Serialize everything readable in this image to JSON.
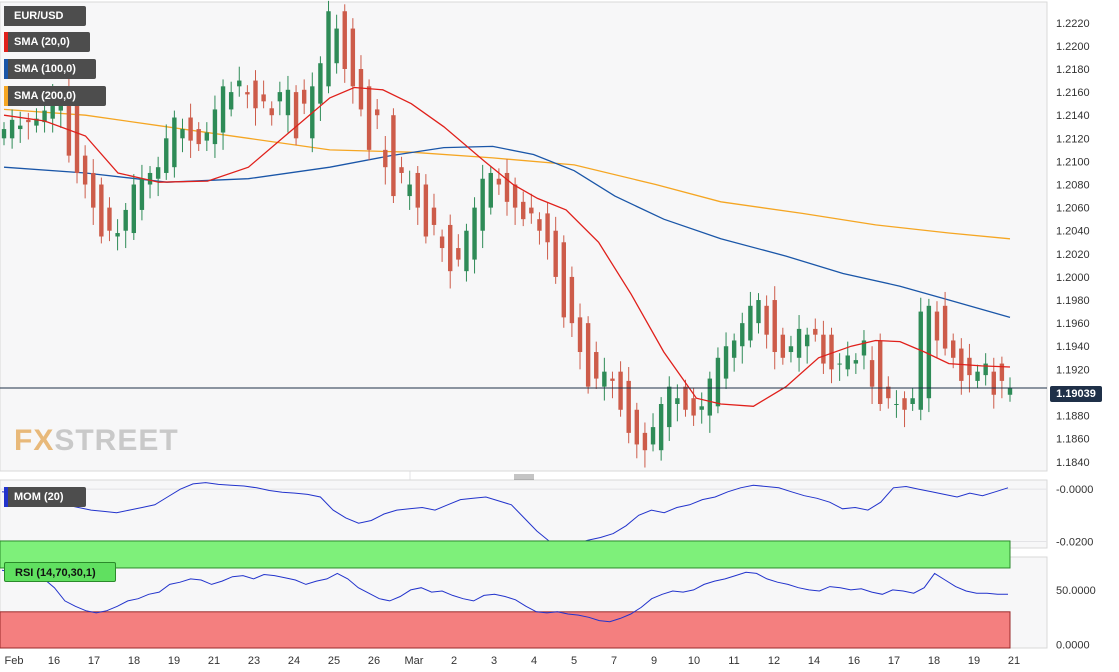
{
  "legends": {
    "main": [
      {
        "label": "EUR/USD",
        "color": "#4d4d4d"
      },
      {
        "label": "SMA (20,0)",
        "color": "#e0201b"
      },
      {
        "label": "SMA (100,0)",
        "color": "#1a56a8"
      },
      {
        "label": "SMA (200,0)",
        "color": "#f5a623"
      }
    ],
    "mom": "MOM (20)",
    "rsi": "RSI (14,70,30,1)"
  },
  "watermark": {
    "fx": "FX",
    "street": "STREET"
  },
  "current_price": "1.19039",
  "colors": {
    "bull": "#2e8b57",
    "bear": "#cd5c4a",
    "sma20": "#e0201b",
    "sma100": "#1a56a8",
    "sma200": "#f5a623",
    "mom": "#2233cc",
    "rsi": "#2233cc"
  },
  "chart_data": [
    {
      "type": "candlestick",
      "title": "EUR/USD",
      "x_labels": [
        "Feb",
        "16",
        "17",
        "18",
        "19",
        "21",
        "23",
        "24",
        "25",
        "26",
        "Mar",
        "2",
        "3",
        "4",
        "5",
        "7",
        "9",
        "10",
        "11",
        "12",
        "14",
        "16",
        "17",
        "18",
        "19",
        "21"
      ],
      "y_ticks": [
        "1.2220",
        "1.2200",
        "1.2180",
        "1.2160",
        "1.2140",
        "1.2120",
        "1.2100",
        "1.2080",
        "1.2060",
        "1.2040",
        "1.2020",
        "1.2000",
        "1.1980",
        "1.1960",
        "1.1940",
        "1.1920",
        "1.1900",
        "1.1880",
        "1.1860",
        "1.1840"
      ],
      "ylim": [
        1.1832,
        1.2238
      ],
      "current_price": 1.19039,
      "ohlc_close": [
        1.2128,
        1.2136,
        1.2131,
        1.2134,
        1.2137,
        1.2144,
        1.2161,
        1.215,
        1.2105,
        1.209,
        1.208,
        1.206,
        1.2035,
        1.204,
        1.2038,
        1.2058,
        1.208,
        1.2085,
        1.209,
        1.2095,
        1.212,
        1.2138,
        1.2128,
        1.2118,
        1.2115,
        1.2125,
        1.2145,
        1.2165,
        1.216,
        1.217,
        1.2158,
        1.2146,
        1.2152,
        1.214,
        1.216,
        1.2162,
        1.212,
        1.215,
        1.2165,
        1.2185,
        1.223,
        1.2215,
        1.218,
        1.2165,
        1.2145,
        1.211,
        1.214,
        1.2095,
        1.207,
        1.209,
        1.208,
        1.206,
        1.2035,
        1.2045,
        1.2025,
        1.2005,
        1.2015,
        1.204,
        1.206,
        1.2085,
        1.209,
        1.208,
        1.2065,
        1.206,
        1.205,
        1.2055,
        1.204,
        1.203,
        1.2,
        1.1965,
        1.196,
        1.1935,
        1.1905,
        1.1912,
        1.1918,
        1.191,
        1.1885,
        1.1865,
        1.1855,
        1.185,
        1.187,
        1.189,
        1.1905,
        1.1895,
        1.1885,
        1.188,
        1.1888,
        1.1912,
        1.193,
        1.194,
        1.1945,
        1.196,
        1.1975,
        1.198,
        1.195,
        1.1935,
        1.193,
        1.194,
        1.1955,
        1.195,
        1.195,
        1.1925,
        1.192,
        1.1925,
        1.1932,
        1.1928,
        1.1945,
        1.1905,
        1.189,
        1.1895,
        1.189,
        1.1885,
        1.1895,
        1.197,
        1.1975,
        1.1945,
        1.1938,
        1.193,
        1.191,
        1.1915,
        1.1918,
        1.1925,
        1.1898,
        1.191,
        1.1904
      ],
      "ohlc_open": [
        1.212,
        1.2128,
        1.2136,
        1.2131,
        1.2134,
        1.2137,
        1.2144,
        1.2161,
        1.215,
        1.2105,
        1.209,
        1.208,
        1.206,
        1.2035,
        1.204,
        1.2038,
        1.2058,
        1.208,
        1.2085,
        1.209,
        1.2095,
        1.212,
        1.2138,
        1.2128,
        1.2118,
        1.2115,
        1.2125,
        1.2145,
        1.2165,
        1.216,
        1.217,
        1.2158,
        1.2146,
        1.2152,
        1.214,
        1.216,
        1.2162,
        1.212,
        1.215,
        1.2165,
        1.2185,
        1.223,
        1.2215,
        1.218,
        1.2165,
        1.2145,
        1.211,
        1.214,
        1.2095,
        1.207,
        1.209,
        1.208,
        1.206,
        1.2035,
        1.2045,
        1.2025,
        1.2005,
        1.2015,
        1.204,
        1.206,
        1.2085,
        1.209,
        1.208,
        1.2065,
        1.206,
        1.205,
        1.2055,
        1.204,
        1.203,
        1.2,
        1.1965,
        1.196,
        1.1935,
        1.1905,
        1.1912,
        1.1918,
        1.191,
        1.1885,
        1.1865,
        1.1855,
        1.185,
        1.187,
        1.189,
        1.1905,
        1.1895,
        1.1885,
        1.188,
        1.1888,
        1.1912,
        1.193,
        1.194,
        1.1945,
        1.196,
        1.1975,
        1.198,
        1.195,
        1.1935,
        1.193,
        1.194,
        1.1955,
        1.195,
        1.195,
        1.1925,
        1.192,
        1.1925,
        1.1932,
        1.1928,
        1.1945,
        1.1905,
        1.189,
        1.1895,
        1.189,
        1.1885,
        1.1895,
        1.197,
        1.1975,
        1.1945,
        1.1938,
        1.193,
        1.191,
        1.1915,
        1.1918,
        1.1925,
        1.1898,
        1.191
      ],
      "sma20_points": [
        [
          0,
          1.214
        ],
        [
          10,
          1.2135
        ],
        [
          20,
          1.2122
        ],
        [
          28,
          1.209
        ],
        [
          38,
          1.2082
        ],
        [
          50,
          1.2083
        ],
        [
          60,
          1.2095
        ],
        [
          70,
          1.2125
        ],
        [
          80,
          1.2155
        ],
        [
          86,
          1.2164
        ],
        [
          93,
          1.2162
        ],
        [
          100,
          1.215
        ],
        [
          108,
          1.213
        ],
        [
          118,
          1.21
        ],
        [
          125,
          1.208
        ],
        [
          131,
          1.2068
        ],
        [
          138,
          1.2058
        ],
        [
          146,
          1.203
        ],
        [
          154,
          1.1985
        ],
        [
          162,
          1.1935
        ],
        [
          170,
          1.1895
        ],
        [
          176,
          1.189
        ],
        [
          184,
          1.1888
        ],
        [
          192,
          1.1905
        ],
        [
          200,
          1.193
        ],
        [
          208,
          1.194
        ],
        [
          214,
          1.1945
        ],
        [
          220,
          1.1944
        ],
        [
          226,
          1.1935
        ],
        [
          232,
          1.1925
        ],
        [
          240,
          1.1923
        ],
        [
          247,
          1.1922
        ]
      ],
      "sma100_points": [
        [
          0,
          1.2095
        ],
        [
          20,
          1.209
        ],
        [
          40,
          1.2082
        ],
        [
          60,
          1.2085
        ],
        [
          80,
          1.2095
        ],
        [
          95,
          1.2105
        ],
        [
          108,
          1.2112
        ],
        [
          120,
          1.2113
        ],
        [
          130,
          1.2106
        ],
        [
          140,
          1.2092
        ],
        [
          150,
          1.207
        ],
        [
          162,
          1.205
        ],
        [
          176,
          1.2033
        ],
        [
          192,
          1.2018
        ],
        [
          206,
          1.2003
        ],
        [
          220,
          1.1992
        ],
        [
          232,
          1.198
        ],
        [
          247,
          1.1965
        ]
      ],
      "sma200_points": [
        [
          0,
          1.2145
        ],
        [
          20,
          1.214
        ],
        [
          40,
          1.213
        ],
        [
          60,
          1.212
        ],
        [
          80,
          1.211
        ],
        [
          100,
          1.2108
        ],
        [
          120,
          1.2103
        ],
        [
          140,
          1.2097
        ],
        [
          160,
          1.208
        ],
        [
          176,
          1.2065
        ],
        [
          196,
          1.2055
        ],
        [
          214,
          1.2045
        ],
        [
          232,
          1.2038
        ],
        [
          247,
          1.2033
        ]
      ]
    },
    {
      "type": "line",
      "title": "MOM (20)",
      "y_ticks": [
        "-0.0000",
        "-0.0200"
      ],
      "ylim": [
        -0.0225,
        0.0035
      ],
      "values": [
        -0.001,
        -0.0015,
        -0.002,
        -0.003,
        -0.0045,
        -0.006,
        -0.007,
        -0.008,
        -0.0085,
        -0.009,
        -0.008,
        -0.007,
        -0.006,
        -0.003,
        0.0,
        0.002,
        0.0025,
        0.0018,
        0.0015,
        0.0012,
        0.0005,
        -0.0005,
        -0.0012,
        -0.0015,
        -0.002,
        -0.003,
        -0.008,
        -0.011,
        -0.013,
        -0.012,
        -0.0095,
        -0.008,
        -0.0075,
        -0.007,
        -0.008,
        -0.006,
        -0.004,
        -0.0035,
        -0.003,
        -0.0045,
        -0.006,
        -0.011,
        -0.016,
        -0.02,
        -0.022,
        -0.021,
        -0.0195,
        -0.0185,
        -0.017,
        -0.014,
        -0.01,
        -0.008,
        -0.009,
        -0.007,
        -0.006,
        -0.004,
        -0.003,
        -0.001,
        0.0005,
        0.0015,
        0.001,
        0.0005,
        -0.001,
        -0.0025,
        -0.0035,
        -0.005,
        -0.0075,
        -0.007,
        -0.008,
        -0.005,
        0.0005,
        0.001,
        0.0,
        -0.001,
        -0.002,
        -0.003,
        -0.0015,
        -0.0025,
        -0.001,
        0.0005
      ]
    },
    {
      "type": "line",
      "title": "RSI (14,70,30,1)",
      "y_ticks": [
        "50.0000",
        "0.0000"
      ],
      "ylim": [
        -3,
        80
      ],
      "levels": [
        70,
        30
      ],
      "values": [
        68,
        66,
        67,
        70,
        60,
        52,
        40,
        35,
        31,
        29,
        31,
        35,
        40,
        42,
        46,
        48,
        55,
        57,
        60,
        59,
        55,
        58,
        62,
        63,
        60,
        64,
        63,
        61,
        59,
        55,
        58,
        60,
        65,
        60,
        52,
        47,
        42,
        40,
        44,
        50,
        52,
        48,
        49,
        45,
        42,
        40,
        45,
        46,
        44,
        41,
        35,
        30,
        29,
        30,
        28,
        27,
        25,
        22,
        21,
        24,
        28,
        34,
        42,
        46,
        49,
        48,
        50,
        55,
        58,
        60,
        63,
        66,
        65,
        60,
        57,
        55,
        52,
        50,
        49,
        53,
        52,
        50,
        51,
        48,
        46,
        50,
        49,
        47,
        52,
        65,
        59,
        53,
        49,
        47,
        47,
        46,
        46
      ]
    }
  ]
}
